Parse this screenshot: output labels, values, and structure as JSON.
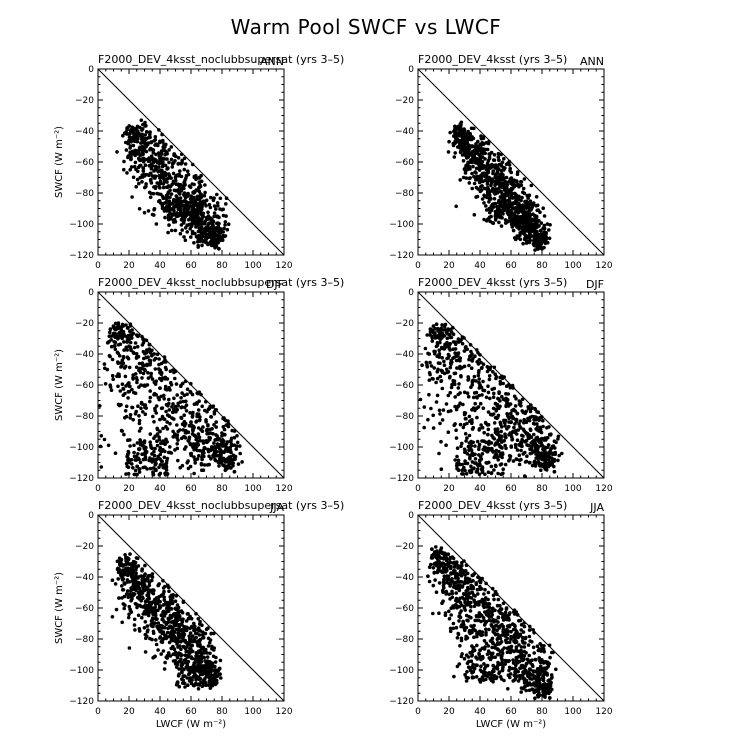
{
  "figure": {
    "title": "Warm Pool SWCF vs LWCF"
  },
  "chart_data": [
    {
      "type": "scatter",
      "left_title": "F2000_DEV_4ksst_noclubbsupersat (yrs 3–5)",
      "right_title": "ANN",
      "xlabel": "",
      "ylabel": "SWCF (W m⁻²)",
      "xlim": [
        0,
        120
      ],
      "ylim": [
        -120,
        0
      ],
      "xticks": [
        "0",
        "20",
        "40",
        "60",
        "80",
        "100",
        "120"
      ],
      "yticks": [
        "0",
        "−20",
        "−40",
        "−60",
        "−80",
        "−100",
        "−120"
      ],
      "reference_line": [
        [
          0,
          0
        ],
        [
          120,
          -120
        ]
      ],
      "cloud": {
        "count": 900,
        "seed": 11,
        "x0": 19,
        "y0": -38,
        "x1": 78,
        "y1": -112,
        "halfwidth": 6,
        "width_growth": 2.2,
        "tail_frac": 0.07,
        "tail_x": [
          44,
          65
        ],
        "tail_y": [
          -98,
          -85
        ]
      },
      "x": [
        19,
        22,
        25,
        30,
        35,
        40,
        45,
        50,
        55,
        60,
        65,
        70,
        75,
        78,
        42,
        48,
        55,
        60,
        66
      ],
      "y": [
        -38,
        -40,
        -42,
        -46,
        -52,
        -58,
        -64,
        -70,
        -76,
        -82,
        -88,
        -96,
        -105,
        -116,
        -90,
        -94,
        -98,
        -86,
        -100
      ]
    },
    {
      "type": "scatter",
      "left_title": "F2000_DEV_4ksst (yrs 3–5)",
      "right_title": "ANN",
      "xlabel": "",
      "ylabel": "",
      "xlim": [
        0,
        120
      ],
      "ylim": [
        -120,
        0
      ],
      "xticks": [
        "0",
        "20",
        "40",
        "60",
        "80",
        "100",
        "120"
      ],
      "yticks": [
        "0",
        "−20",
        "−40",
        "−60",
        "−80",
        "−100",
        "−120"
      ],
      "reference_line": [
        [
          0,
          0
        ],
        [
          120,
          -120
        ]
      ],
      "cloud": {
        "count": 950,
        "seed": 23,
        "x0": 24,
        "y0": -38,
        "x1": 80,
        "y1": -113,
        "halfwidth": 5,
        "width_growth": 2.0,
        "tail_frac": 0.06,
        "tail_x": [
          45,
          72
        ],
        "tail_y": [
          -100,
          -85
        ]
      },
      "x": [
        24,
        27,
        30,
        35,
        40,
        45,
        50,
        55,
        60,
        65,
        70,
        75,
        80,
        50,
        60,
        68
      ],
      "y": [
        -38,
        -42,
        -45,
        -50,
        -56,
        -62,
        -68,
        -74,
        -80,
        -88,
        -95,
        -104,
        -116,
        -92,
        -98,
        -102
      ]
    },
    {
      "type": "scatter",
      "left_title": "F2000_DEV_4ksst_noclubbsupersat (yrs 3–5)",
      "right_title": "DJF",
      "xlabel": "",
      "ylabel": "SWCF (W m⁻²)",
      "xlim": [
        0,
        120
      ],
      "ylim": [
        -120,
        0
      ],
      "xticks": [
        "0",
        "20",
        "40",
        "60",
        "80",
        "100",
        "120"
      ],
      "yticks": [
        "0",
        "−20",
        "−40",
        "−60",
        "−80",
        "−100",
        "−120"
      ],
      "reference_line": [
        [
          0,
          0
        ],
        [
          120,
          -120
        ]
      ],
      "cloud": {
        "count": 1000,
        "seed": 37,
        "x0": 10,
        "y0": -22,
        "x1": 86,
        "y1": -112,
        "halfwidth": 3,
        "width_growth": 14,
        "tail_frac": 0.1,
        "tail_x": [
          18,
          45
        ],
        "tail_y": [
          -118,
          -95
        ]
      },
      "x": [
        8,
        10,
        15,
        20,
        25,
        30,
        40,
        50,
        60,
        70,
        80,
        88,
        20,
        30,
        40
      ],
      "y": [
        -24,
        -22,
        -28,
        -35,
        -42,
        -50,
        -62,
        -74,
        -84,
        -96,
        -108,
        -116,
        -110,
        -100,
        -90
      ]
    },
    {
      "type": "scatter",
      "left_title": "F2000_DEV_4ksst (yrs 3–5)",
      "right_title": "DJF",
      "xlabel": "",
      "ylabel": "",
      "xlim": [
        0,
        120
      ],
      "ylim": [
        -120,
        0
      ],
      "xticks": [
        "0",
        "20",
        "40",
        "60",
        "80",
        "100",
        "120"
      ],
      "yticks": [
        "0",
        "−20",
        "−40",
        "−60",
        "−80",
        "−100",
        "−120"
      ],
      "reference_line": [
        [
          0,
          0
        ],
        [
          120,
          -120
        ]
      ],
      "cloud": {
        "count": 1000,
        "seed": 41,
        "x0": 10,
        "y0": -22,
        "x1": 86,
        "y1": -112,
        "halfwidth": 3,
        "width_growth": 12,
        "tail_frac": 0.1,
        "tail_x": [
          25,
          55
        ],
        "tail_y": [
          -118,
          -96
        ]
      },
      "x": [
        8,
        10,
        15,
        20,
        25,
        30,
        40,
        50,
        60,
        70,
        80,
        88,
        25,
        35,
        45
      ],
      "y": [
        -24,
        -22,
        -28,
        -34,
        -40,
        -48,
        -60,
        -72,
        -84,
        -96,
        -108,
        -116,
        -112,
        -104,
        -92
      ]
    },
    {
      "type": "scatter",
      "left_title": "F2000_DEV_4ksst_noclubbsupersat (yrs 3–5)",
      "right_title": "JJA",
      "xlabel": "LWCF (W m⁻²)",
      "ylabel": "SWCF (W m⁻²)",
      "xlim": [
        0,
        120
      ],
      "ylim": [
        -120,
        0
      ],
      "xticks": [
        "0",
        "20",
        "40",
        "60",
        "80",
        "100",
        "120"
      ],
      "yticks": [
        "0",
        "−20",
        "−40",
        "−60",
        "−80",
        "−100",
        "−120"
      ],
      "reference_line": [
        [
          0,
          0
        ],
        [
          120,
          -120
        ]
      ],
      "cloud": {
        "count": 950,
        "seed": 53,
        "x0": 14,
        "y0": -28,
        "x1": 76,
        "y1": -108,
        "halfwidth": 4,
        "width_growth": 3.5,
        "tail_frac": 0.05,
        "tail_x": [
          50,
          70
        ],
        "tail_y": [
          -112,
          -98
        ]
      },
      "x": [
        14,
        18,
        22,
        26,
        30,
        35,
        40,
        45,
        50,
        55,
        60,
        65,
        70,
        75,
        55,
        62
      ],
      "y": [
        -28,
        -32,
        -36,
        -40,
        -45,
        -50,
        -56,
        -62,
        -68,
        -74,
        -80,
        -88,
        -96,
        -108,
        -104,
        -110
      ]
    },
    {
      "type": "scatter",
      "left_title": "F2000_DEV_4ksst (yrs 3–5)",
      "right_title": "JJA",
      "xlabel": "LWCF (W m⁻²)",
      "ylabel": "",
      "xlim": [
        0,
        120
      ],
      "ylim": [
        -120,
        0
      ],
      "xticks": [
        "0",
        "20",
        "40",
        "60",
        "80",
        "100",
        "120"
      ],
      "yticks": [
        "0",
        "−20",
        "−40",
        "−60",
        "−80",
        "−100",
        "−120"
      ],
      "reference_line": [
        [
          0,
          0
        ],
        [
          120,
          -120
        ]
      ],
      "cloud": {
        "count": 1000,
        "seed": 67,
        "x0": 10,
        "y0": -22,
        "x1": 84,
        "y1": -115,
        "halfwidth": 4,
        "width_growth": 5,
        "tail_frac": 0.08,
        "tail_x": [
          30,
          55
        ],
        "tail_y": [
          -108,
          -85
        ]
      },
      "x": [
        9,
        12,
        16,
        20,
        25,
        30,
        35,
        40,
        45,
        50,
        55,
        60,
        65,
        70,
        75,
        80,
        85,
        35,
        45
      ],
      "y": [
        -22,
        -24,
        -28,
        -33,
        -38,
        -44,
        -50,
        -56,
        -62,
        -68,
        -74,
        -80,
        -88,
        -96,
        -104,
        -112,
        -118,
        -98,
        -104
      ]
    }
  ]
}
